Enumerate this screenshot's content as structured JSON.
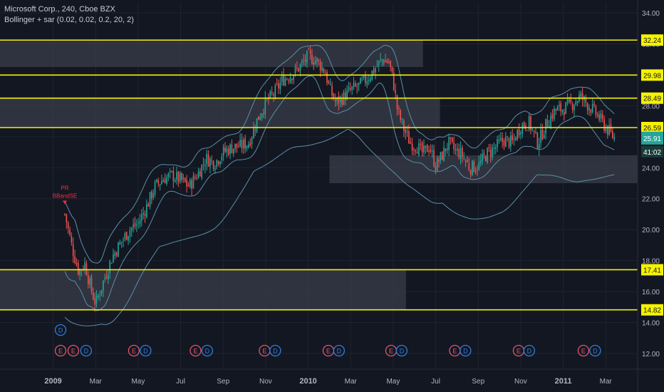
{
  "legend": {
    "symbol": "Microsoft Corp., 240, Cboe BZX",
    "indicator": "Bollinger + sar (0.02, 0.02, 0.2, 20, 2)"
  },
  "colors": {
    "background": "#131722",
    "grid": "#1f2330",
    "zone": "#3a3d4a",
    "level_line": "#f5f200",
    "level_label_bg": "#f5f200",
    "band": "#5b8fa8",
    "candle_up": "#26a69a",
    "candle_down": "#ef5350",
    "event_e": "#e0566b",
    "event_d": "#2f7fe0",
    "price_badge": "#26a69a",
    "signal": "#ff2a3a",
    "axis_text": "#b2b5be"
  },
  "chart_data": {
    "type": "candlestick",
    "title": "Microsoft Corp., 240, Cboe BZX",
    "ylim": [
      12,
      34
    ],
    "y_ticks": [
      34.0,
      32.0,
      30.0,
      28.0,
      26.0,
      24.0,
      22.0,
      20.0,
      18.0,
      16.0,
      14.0,
      12.0
    ],
    "y_tick_labels": [
      "34.00",
      "32.00",
      "30.00",
      "28.00",
      "26.00",
      "24.00",
      "22.00",
      "20.00",
      "18.00",
      "16.00",
      "14.00",
      "12.00"
    ],
    "x_ticks": [
      {
        "label": "2009",
        "t": 0.0
      },
      {
        "label": "Mar",
        "t": 2.0
      },
      {
        "label": "May",
        "t": 4.0
      },
      {
        "label": "Jul",
        "t": 6.0
      },
      {
        "label": "Sep",
        "t": 8.0
      },
      {
        "label": "Nov",
        "t": 10.0
      },
      {
        "label": "2010",
        "t": 12.0
      },
      {
        "label": "Mar",
        "t": 14.0
      },
      {
        "label": "May",
        "t": 16.0
      },
      {
        "label": "Jul",
        "t": 18.0
      },
      {
        "label": "Sep",
        "t": 20.0
      },
      {
        "label": "Nov",
        "t": 22.0
      },
      {
        "label": "2011",
        "t": 24.0
      },
      {
        "label": "Mar",
        "t": 26.0
      }
    ],
    "levels": [
      {
        "value": 32.24,
        "label": "32.24"
      },
      {
        "value": 29.98,
        "label": "29.98"
      },
      {
        "value": 28.49,
        "label": "28.49"
      },
      {
        "value": 26.59,
        "label": "26.59"
      },
      {
        "value": 17.41,
        "label": "17.41"
      },
      {
        "value": 14.82,
        "label": "14.82"
      }
    ],
    "zones": [
      {
        "t0": -2.5,
        "t1": 17.4,
        "y0": 30.5,
        "y1": 32.24
      },
      {
        "t0": -2.5,
        "t1": 18.2,
        "y0": 26.59,
        "y1": 28.49
      },
      {
        "t0": 13.0,
        "t1": 27.5,
        "y0": 23.0,
        "y1": 24.8
      },
      {
        "t0": -2.5,
        "t1": 16.6,
        "y0": 14.82,
        "y1": 17.41
      }
    ],
    "price_path": [
      [
        0.55,
        21.0
      ],
      [
        0.9,
        18.8
      ],
      [
        1.2,
        17.3
      ],
      [
        1.5,
        17.8
      ],
      [
        1.75,
        16.3
      ],
      [
        2.0,
        15.2
      ],
      [
        2.4,
        16.8
      ],
      [
        2.8,
        18.3
      ],
      [
        3.2,
        19.2
      ],
      [
        3.6,
        20.0
      ],
      [
        4.0,
        20.4
      ],
      [
        4.4,
        21.5
      ],
      [
        4.8,
        22.8
      ],
      [
        5.2,
        23.3
      ],
      [
        5.6,
        23.5
      ],
      [
        6.0,
        23.2
      ],
      [
        6.4,
        22.8
      ],
      [
        6.8,
        23.6
      ],
      [
        7.2,
        24.6
      ],
      [
        7.6,
        24.3
      ],
      [
        8.0,
        25.0
      ],
      [
        8.4,
        25.3
      ],
      [
        8.8,
        25.4
      ],
      [
        9.2,
        25.6
      ],
      [
        9.6,
        27.1
      ],
      [
        10.0,
        28.2
      ],
      [
        10.4,
        28.8
      ],
      [
        10.8,
        29.7
      ],
      [
        11.2,
        30.0
      ],
      [
        11.6,
        30.5
      ],
      [
        12.0,
        31.2
      ],
      [
        12.4,
        30.9
      ],
      [
        12.8,
        30.2
      ],
      [
        13.0,
        29.1
      ],
      [
        13.3,
        28.2
      ],
      [
        13.7,
        28.6
      ],
      [
        14.0,
        29.0
      ],
      [
        14.4,
        29.3
      ],
      [
        14.8,
        29.8
      ],
      [
        15.2,
        30.5
      ],
      [
        15.5,
        31.0
      ],
      [
        15.8,
        30.8
      ],
      [
        16.0,
        29.6
      ],
      [
        16.2,
        27.7
      ],
      [
        16.5,
        26.5
      ],
      [
        16.8,
        25.6
      ],
      [
        17.1,
        25.4
      ],
      [
        17.4,
        24.9
      ],
      [
        17.7,
        25.4
      ],
      [
        18.0,
        24.1
      ],
      [
        18.3,
        24.8
      ],
      [
        18.6,
        25.6
      ],
      [
        18.9,
        25.1
      ],
      [
        19.2,
        24.9
      ],
      [
        19.6,
        24.0
      ],
      [
        20.0,
        24.1
      ],
      [
        20.4,
        24.9
      ],
      [
        20.8,
        25.3
      ],
      [
        21.2,
        25.8
      ],
      [
        21.6,
        25.6
      ],
      [
        22.0,
        26.7
      ],
      [
        22.4,
        26.9
      ],
      [
        22.8,
        25.6
      ],
      [
        23.2,
        26.8
      ],
      [
        23.6,
        27.7
      ],
      [
        24.0,
        27.8
      ],
      [
        24.4,
        28.1
      ],
      [
        24.8,
        28.6
      ],
      [
        25.2,
        28.0
      ],
      [
        25.6,
        27.4
      ],
      [
        26.0,
        26.6
      ],
      [
        26.4,
        25.91
      ]
    ],
    "last_price": "25.91",
    "countdown": "41:02",
    "signals": [
      {
        "t": 0.55,
        "lines": [
          "PR",
          "BBandSE"
        ]
      }
    ],
    "events": [
      {
        "type": "D",
        "t": 0.35,
        "row": "upper"
      },
      {
        "type": "E",
        "t": 0.35,
        "row": "lower"
      },
      {
        "type": "E",
        "t": 0.95,
        "row": "lower"
      },
      {
        "type": "D",
        "t": 1.55,
        "row": "lower"
      },
      {
        "type": "E",
        "t": 3.8,
        "row": "lower"
      },
      {
        "type": "D",
        "t": 4.35,
        "row": "lower"
      },
      {
        "type": "E",
        "t": 6.7,
        "row": "lower"
      },
      {
        "type": "D",
        "t": 7.25,
        "row": "lower"
      },
      {
        "type": "E",
        "t": 9.95,
        "row": "lower"
      },
      {
        "type": "D",
        "t": 10.45,
        "row": "lower"
      },
      {
        "type": "E",
        "t": 12.95,
        "row": "lower"
      },
      {
        "type": "D",
        "t": 13.45,
        "row": "lower"
      },
      {
        "type": "E",
        "t": 15.9,
        "row": "lower"
      },
      {
        "type": "D",
        "t": 16.4,
        "row": "lower"
      },
      {
        "type": "E",
        "t": 18.9,
        "row": "lower"
      },
      {
        "type": "D",
        "t": 19.4,
        "row": "lower"
      },
      {
        "type": "E",
        "t": 21.9,
        "row": "lower"
      },
      {
        "type": "D",
        "t": 22.4,
        "row": "lower"
      },
      {
        "type": "E",
        "t": 24.95,
        "row": "lower"
      },
      {
        "type": "D",
        "t": 25.5,
        "row": "lower"
      }
    ]
  }
}
